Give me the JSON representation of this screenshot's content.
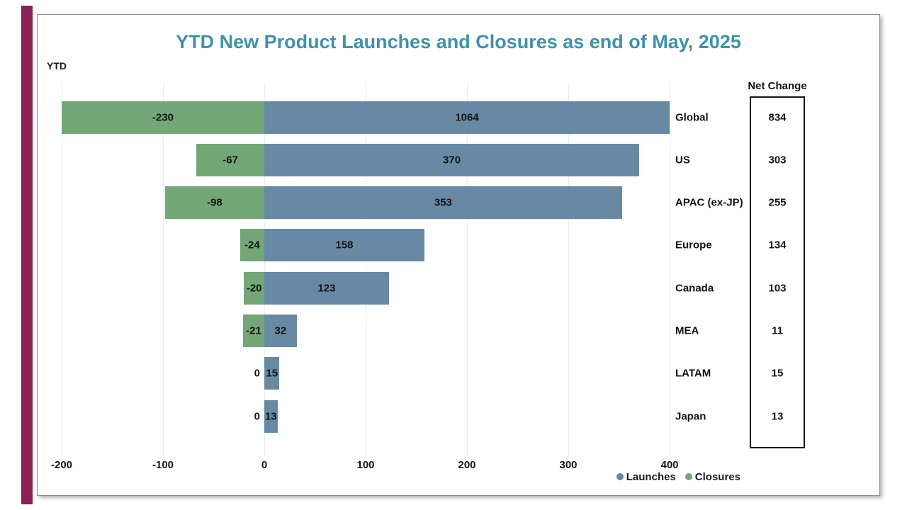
{
  "chart_data": {
    "type": "bar",
    "orientation": "horizontal",
    "title": "YTD New Product Launches and Closures as end of May, 2025",
    "axis_title": "YTD",
    "net_change_label": "Net Change",
    "categories": [
      "Global",
      "US",
      "APAC (ex-JP)",
      "Europe",
      "Canada",
      "MEA",
      "LATAM",
      "Japan"
    ],
    "series": [
      {
        "name": "Launches",
        "color": "#6889A3",
        "values": [
          1064,
          370,
          353,
          158,
          123,
          32,
          15,
          13
        ]
      },
      {
        "name": "Closures",
        "color": "#73A777",
        "values": [
          -230,
          -67,
          -98,
          -24,
          -20,
          -21,
          0,
          0
        ]
      }
    ],
    "net_change": [
      834,
      303,
      255,
      134,
      103,
      11,
      15,
      13
    ],
    "x_ticks": [
      -200,
      -100,
      0,
      100,
      200,
      300,
      400
    ],
    "xlim": [
      -200,
      400
    ],
    "bars_clipped_to_xlim": true,
    "grid": true,
    "legend_position": "bottom-right"
  },
  "colors": {
    "launches_blue": "#6889A3",
    "closures_green": "#73A777",
    "title_teal": "#3E93A9",
    "accent_stripe_maroon": "#8B2154",
    "text": "#1B1B1B",
    "gridline": "#ECECEC",
    "panel_border": "#8E8E8E",
    "net_box_border": "#161616"
  }
}
